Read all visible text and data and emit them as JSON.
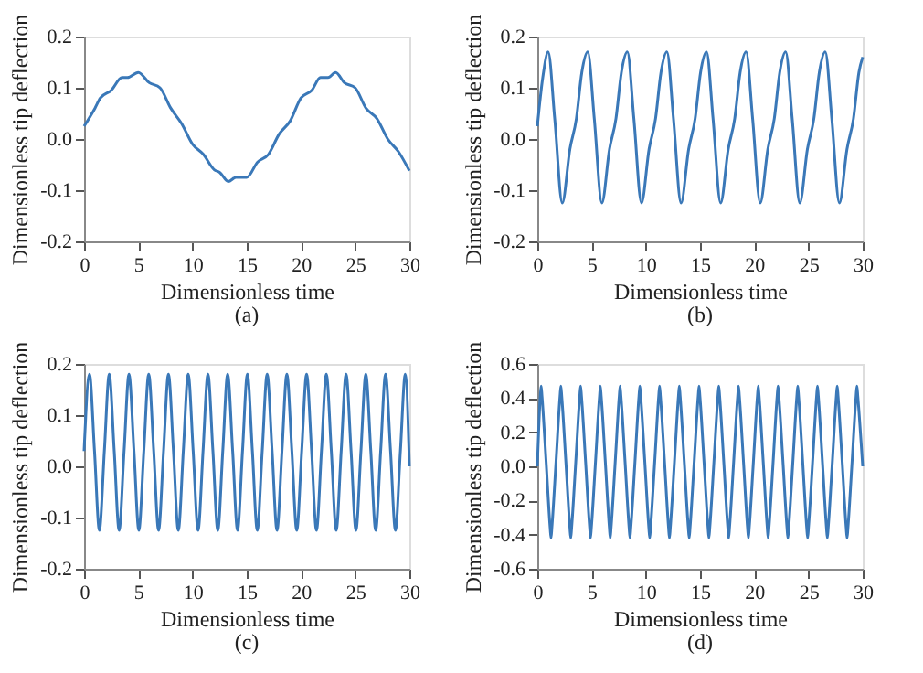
{
  "chart_data": [
    {
      "type": "line",
      "xlabel": "Dimensionless time",
      "ylabel": "Dimensionless tip deflection",
      "annotations": [
        "(a)"
      ],
      "xlim": [
        0,
        30
      ],
      "ylim": [
        -0.2,
        0.2
      ],
      "xticks": [
        0,
        5,
        10,
        15,
        20,
        25,
        30
      ],
      "yticks": [
        {
          "value": -0.2,
          "label": "-0.2"
        },
        {
          "value": -0.1,
          "label": "-0.1"
        },
        {
          "value": 0,
          "label": "0.0"
        },
        {
          "value": 0.1,
          "label": "0.1"
        },
        {
          "value": 0.2,
          "label": "0.2"
        }
      ],
      "grid": false,
      "color": "#3a78b8",
      "x": [
        0,
        1,
        1.5,
        2.5,
        3.5,
        4,
        5,
        6,
        7,
        8,
        9,
        10,
        11,
        12,
        12.5,
        13.3,
        14,
        15,
        16,
        17,
        18,
        19,
        20,
        21,
        21.8,
        22.5,
        23.2,
        24,
        25,
        26,
        27,
        28,
        29,
        30
      ],
      "values": [
        0.025,
        0.06,
        0.08,
        0.095,
        0.12,
        0.12,
        0.13,
        0.11,
        0.1,
        0.06,
        0.03,
        -0.01,
        -0.03,
        -0.06,
        -0.065,
        -0.083,
        -0.075,
        -0.075,
        -0.045,
        -0.03,
        0.01,
        0.035,
        0.08,
        0.095,
        0.12,
        0.12,
        0.13,
        0.11,
        0.1,
        0.06,
        0.04,
        0.0,
        -0.025,
        -0.062
      ]
    },
    {
      "type": "line",
      "xlabel": "Dimensionless time",
      "ylabel": "Dimensionless tip deflection",
      "annotations": [
        "(b)"
      ],
      "xlim": [
        0,
        30
      ],
      "ylim": [
        -0.2,
        0.2
      ],
      "xticks": [
        0,
        5,
        10,
        15,
        20,
        25,
        30
      ],
      "yticks": [
        {
          "value": -0.2,
          "label": "-0.2"
        },
        {
          "value": -0.1,
          "label": "-0.1"
        },
        {
          "value": 0,
          "label": "0.0"
        },
        {
          "value": 0.1,
          "label": "0.1"
        },
        {
          "value": 0.2,
          "label": "0.2"
        }
      ],
      "grid": false,
      "color": "#3a78b8",
      "x": [
        0,
        0.5,
        1.0,
        1.6,
        2.3,
        3.0,
        3.6,
        4.1,
        4.65,
        5.25,
        5.95,
        6.65,
        7.25,
        7.75,
        8.3,
        8.9,
        9.6,
        10.3,
        10.9,
        11.4,
        11.95,
        12.55,
        13.25,
        13.95,
        14.55,
        15.05,
        15.6,
        16.2,
        16.9,
        17.6,
        18.2,
        18.7,
        19.25,
        19.85,
        20.55,
        21.25,
        21.85,
        22.35,
        22.9,
        23.5,
        24.2,
        24.9,
        25.5,
        26.0,
        26.55,
        27.15,
        27.85,
        28.55,
        29.15,
        29.65,
        30
      ],
      "values": [
        0.025,
        0.12,
        0.17,
        0.04,
        -0.125,
        -0.02,
        0.04,
        0.13,
        0.17,
        0.04,
        -0.125,
        -0.02,
        0.04,
        0.13,
        0.17,
        0.04,
        -0.125,
        -0.02,
        0.04,
        0.13,
        0.17,
        0.04,
        -0.125,
        -0.02,
        0.04,
        0.13,
        0.17,
        0.04,
        -0.125,
        -0.02,
        0.04,
        0.13,
        0.17,
        0.04,
        -0.125,
        -0.02,
        0.04,
        0.13,
        0.17,
        0.04,
        -0.125,
        -0.02,
        0.04,
        0.13,
        0.17,
        0.04,
        -0.125,
        -0.02,
        0.04,
        0.13,
        0.16
      ]
    },
    {
      "type": "line",
      "xlabel": "Dimensionless time",
      "ylabel": "Dimensionless tip deflection",
      "annotations": [
        "(c)"
      ],
      "xlim": [
        0,
        30
      ],
      "ylim": [
        -0.2,
        0.2
      ],
      "xticks": [
        0,
        5,
        10,
        15,
        20,
        25,
        30
      ],
      "yticks": [
        {
          "value": -0.2,
          "label": "-0.2"
        },
        {
          "value": -0.1,
          "label": "-0.1"
        },
        {
          "value": 0,
          "label": "0.0"
        },
        {
          "value": 0.1,
          "label": "0.1"
        },
        {
          "value": 0.2,
          "label": "0.2"
        }
      ],
      "grid": false,
      "color": "#3a78b8",
      "x": [
        0,
        0.5,
        0.96,
        1.41,
        1.87,
        2.32,
        2.78,
        3.23,
        3.69,
        4.14,
        4.6,
        5.05,
        5.51,
        5.96,
        6.42,
        6.87,
        7.33,
        7.78,
        8.24,
        8.69,
        9.15,
        9.6,
        10.06,
        10.51,
        10.97,
        11.42,
        11.88,
        12.33,
        12.79,
        13.24,
        13.7,
        14.15,
        14.61,
        15.06,
        15.52,
        15.97,
        16.43,
        16.88,
        17.34,
        17.79,
        18.25,
        18.7,
        19.16,
        19.61,
        20.07,
        20.52,
        20.98,
        21.43,
        21.89,
        22.34,
        22.8,
        23.25,
        23.71,
        24.16,
        24.62,
        25.07,
        25.53,
        25.98,
        26.44,
        26.89,
        27.35,
        27.8,
        28.26,
        28.71,
        29.17,
        29.62,
        30
      ],
      "values": [
        0.03,
        0.18,
        0.03,
        -0.125,
        0.03,
        0.18,
        0.03,
        -0.125,
        0.03,
        0.18,
        0.03,
        -0.125,
        0.03,
        0.18,
        0.03,
        -0.125,
        0.03,
        0.18,
        0.03,
        -0.125,
        0.03,
        0.18,
        0.03,
        -0.125,
        0.03,
        0.18,
        0.03,
        -0.125,
        0.03,
        0.18,
        0.03,
        -0.125,
        0.03,
        0.18,
        0.03,
        -0.125,
        0.03,
        0.18,
        0.03,
        -0.125,
        0.03,
        0.18,
        0.03,
        -0.125,
        0.03,
        0.18,
        0.03,
        -0.125,
        0.03,
        0.18,
        0.03,
        -0.125,
        0.03,
        0.18,
        0.03,
        -0.125,
        0.03,
        0.18,
        0.03,
        -0.125,
        0.03,
        0.18,
        0.03,
        -0.125,
        0.03,
        0.18,
        0.0
      ]
    },
    {
      "type": "line",
      "xlabel": "Dimensionless time",
      "ylabel": "Dimensionless tip deflection",
      "annotations": [
        "(d)"
      ],
      "xlim": [
        0,
        30
      ],
      "ylim": [
        -0.6,
        0.6
      ],
      "xticks": [
        0,
        5,
        10,
        15,
        20,
        25,
        30
      ],
      "yticks": [
        {
          "value": -0.6,
          "label": "-0.6"
        },
        {
          "value": -0.4,
          "label": "-0.4"
        },
        {
          "value": -0.2,
          "label": "-0.2"
        },
        {
          "value": 0,
          "label": "0.0"
        },
        {
          "value": 0.2,
          "label": "0.2"
        },
        {
          "value": 0.4,
          "label": "0.4"
        },
        {
          "value": 0.6,
          "label": "0.6"
        }
      ],
      "grid": false,
      "color": "#3a78b8",
      "x": [
        0,
        0.27,
        0.35,
        0.43,
        0.81,
        1.18,
        1.26,
        1.34,
        1.72,
        2.09,
        2.17,
        2.25,
        2.63,
        3.0,
        3.08,
        3.16,
        3.54,
        3.91,
        3.99,
        4.07,
        4.45,
        4.82,
        4.9,
        4.98,
        5.36,
        5.73,
        5.81,
        5.89,
        6.27,
        6.64,
        6.72,
        6.8,
        7.18,
        7.55,
        7.63,
        7.71,
        8.09,
        8.46,
        8.54,
        8.62,
        9.0,
        9.37,
        9.45,
        9.53,
        9.91,
        10.28,
        10.36,
        10.44,
        10.82,
        11.19,
        11.27,
        11.35,
        11.73,
        12.1,
        12.18,
        12.26,
        12.64,
        13.01,
        13.09,
        13.17,
        13.55,
        13.92,
        14.0,
        14.08,
        14.46,
        14.83,
        14.91,
        14.99,
        15.37,
        15.74,
        15.82,
        15.9,
        16.28,
        16.65,
        16.73,
        16.81,
        17.19,
        17.56,
        17.64,
        17.72,
        18.1,
        18.47,
        18.55,
        18.63,
        19.01,
        19.38,
        19.46,
        19.54,
        19.92,
        20.29,
        20.37,
        20.45,
        20.83,
        21.2,
        21.28,
        21.36,
        21.74,
        22.11,
        22.19,
        22.27,
        22.65,
        23.02,
        23.1,
        23.18,
        23.56,
        23.93,
        24.01,
        24.09,
        24.47,
        24.84,
        24.92,
        25.0,
        25.38,
        25.75,
        25.83,
        25.91,
        26.29,
        26.66,
        26.74,
        26.82,
        27.2,
        27.57,
        27.65,
        27.73,
        28.11,
        28.48,
        28.56,
        28.64,
        29.02,
        29.39,
        29.47,
        29.55,
        30
      ],
      "values": [
        0.0,
        0.41,
        0.47,
        0.41,
        0.025,
        -0.36,
        -0.42,
        -0.36,
        0.025,
        0.41,
        0.47,
        0.41,
        0.025,
        -0.36,
        -0.42,
        -0.36,
        0.025,
        0.41,
        0.47,
        0.41,
        0.025,
        -0.36,
        -0.42,
        -0.36,
        0.025,
        0.41,
        0.47,
        0.41,
        0.025,
        -0.36,
        -0.42,
        -0.36,
        0.025,
        0.41,
        0.47,
        0.41,
        0.025,
        -0.36,
        -0.42,
        -0.36,
        0.025,
        0.41,
        0.47,
        0.41,
        0.025,
        -0.36,
        -0.42,
        -0.36,
        0.025,
        0.41,
        0.47,
        0.41,
        0.025,
        -0.36,
        -0.42,
        -0.36,
        0.025,
        0.41,
        0.47,
        0.41,
        0.025,
        -0.36,
        -0.42,
        -0.36,
        0.025,
        0.41,
        0.47,
        0.41,
        0.025,
        -0.36,
        -0.42,
        -0.36,
        0.025,
        0.41,
        0.47,
        0.41,
        0.025,
        -0.36,
        -0.42,
        -0.36,
        0.025,
        0.41,
        0.47,
        0.41,
        0.025,
        -0.36,
        -0.42,
        -0.36,
        0.025,
        0.41,
        0.47,
        0.41,
        0.025,
        -0.36,
        -0.42,
        -0.36,
        0.025,
        0.41,
        0.47,
        0.41,
        0.025,
        -0.36,
        -0.42,
        -0.36,
        0.025,
        0.41,
        0.47,
        0.41,
        0.025,
        -0.36,
        -0.42,
        -0.36,
        0.025,
        0.41,
        0.47,
        0.41,
        0.025,
        -0.36,
        -0.42,
        -0.36,
        0.025,
        0.41,
        0.47,
        0.41,
        0.025,
        -0.36,
        -0.42,
        -0.36,
        0.025,
        0.41,
        0.47,
        0.41,
        0.0
      ]
    }
  ]
}
